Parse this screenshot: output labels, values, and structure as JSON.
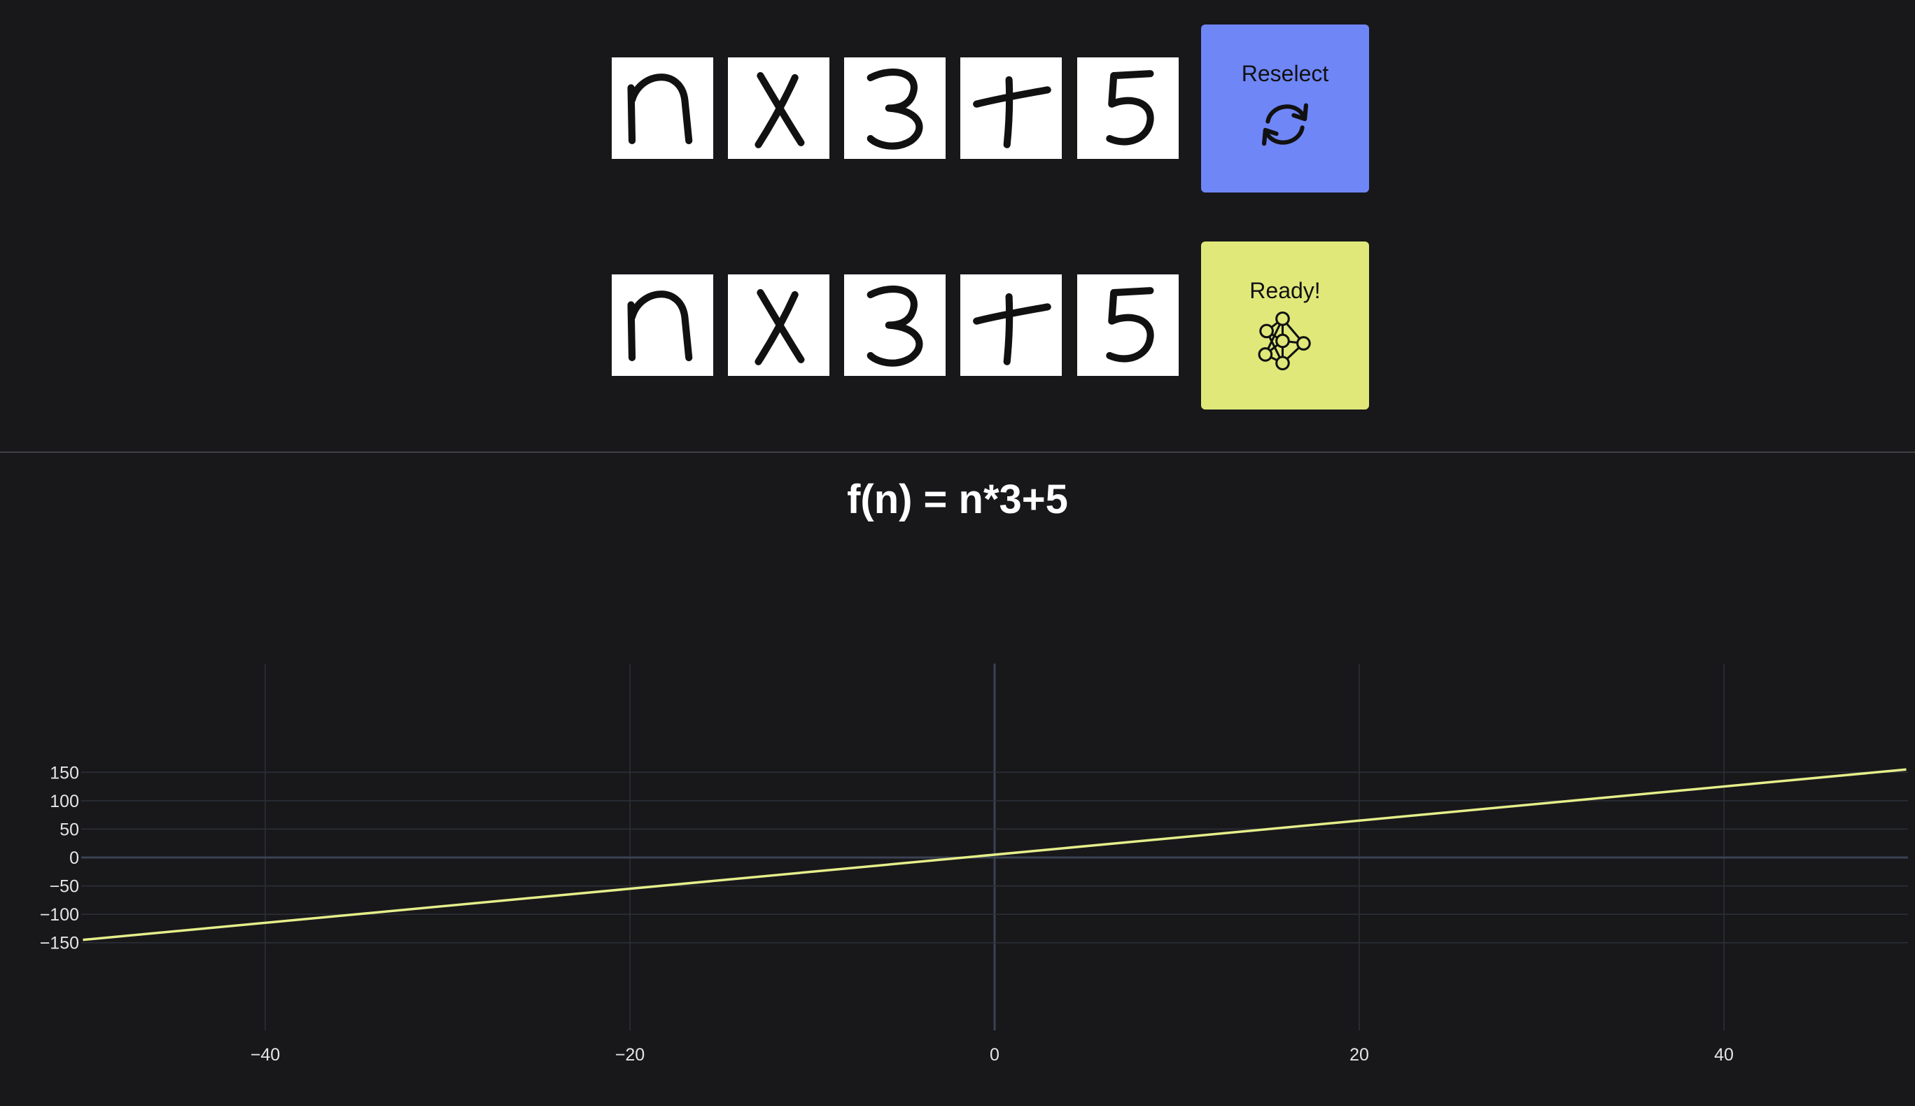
{
  "rows": [
    {
      "name": "input",
      "tiles": [
        "n",
        "X",
        "3",
        "+",
        "5"
      ]
    },
    {
      "name": "parsed",
      "tiles": [
        "n",
        "X",
        "3",
        "+",
        "5"
      ]
    }
  ],
  "buttons": {
    "reselect": {
      "label": "Reselect",
      "color": "#6f86f7",
      "icon": "refresh-icon"
    },
    "ready": {
      "label": "Ready!",
      "color": "#e0e87a",
      "icon": "neural-network-icon"
    }
  },
  "function_title": "f(n) = n*3+5",
  "chart_data": {
    "type": "line",
    "title": "",
    "xlabel": "",
    "ylabel": "",
    "xlim": [
      -50,
      50
    ],
    "ylim": [
      -150,
      160
    ],
    "x_ticks": [
      -40,
      -20,
      0,
      20,
      40
    ],
    "y_ticks": [
      150,
      100,
      50,
      0,
      -50,
      -100,
      -150
    ],
    "grid": true,
    "series": [
      {
        "x": [
          -50,
          50
        ],
        "y": [
          -145,
          155
        ],
        "color": "#e6ee8a"
      }
    ]
  }
}
